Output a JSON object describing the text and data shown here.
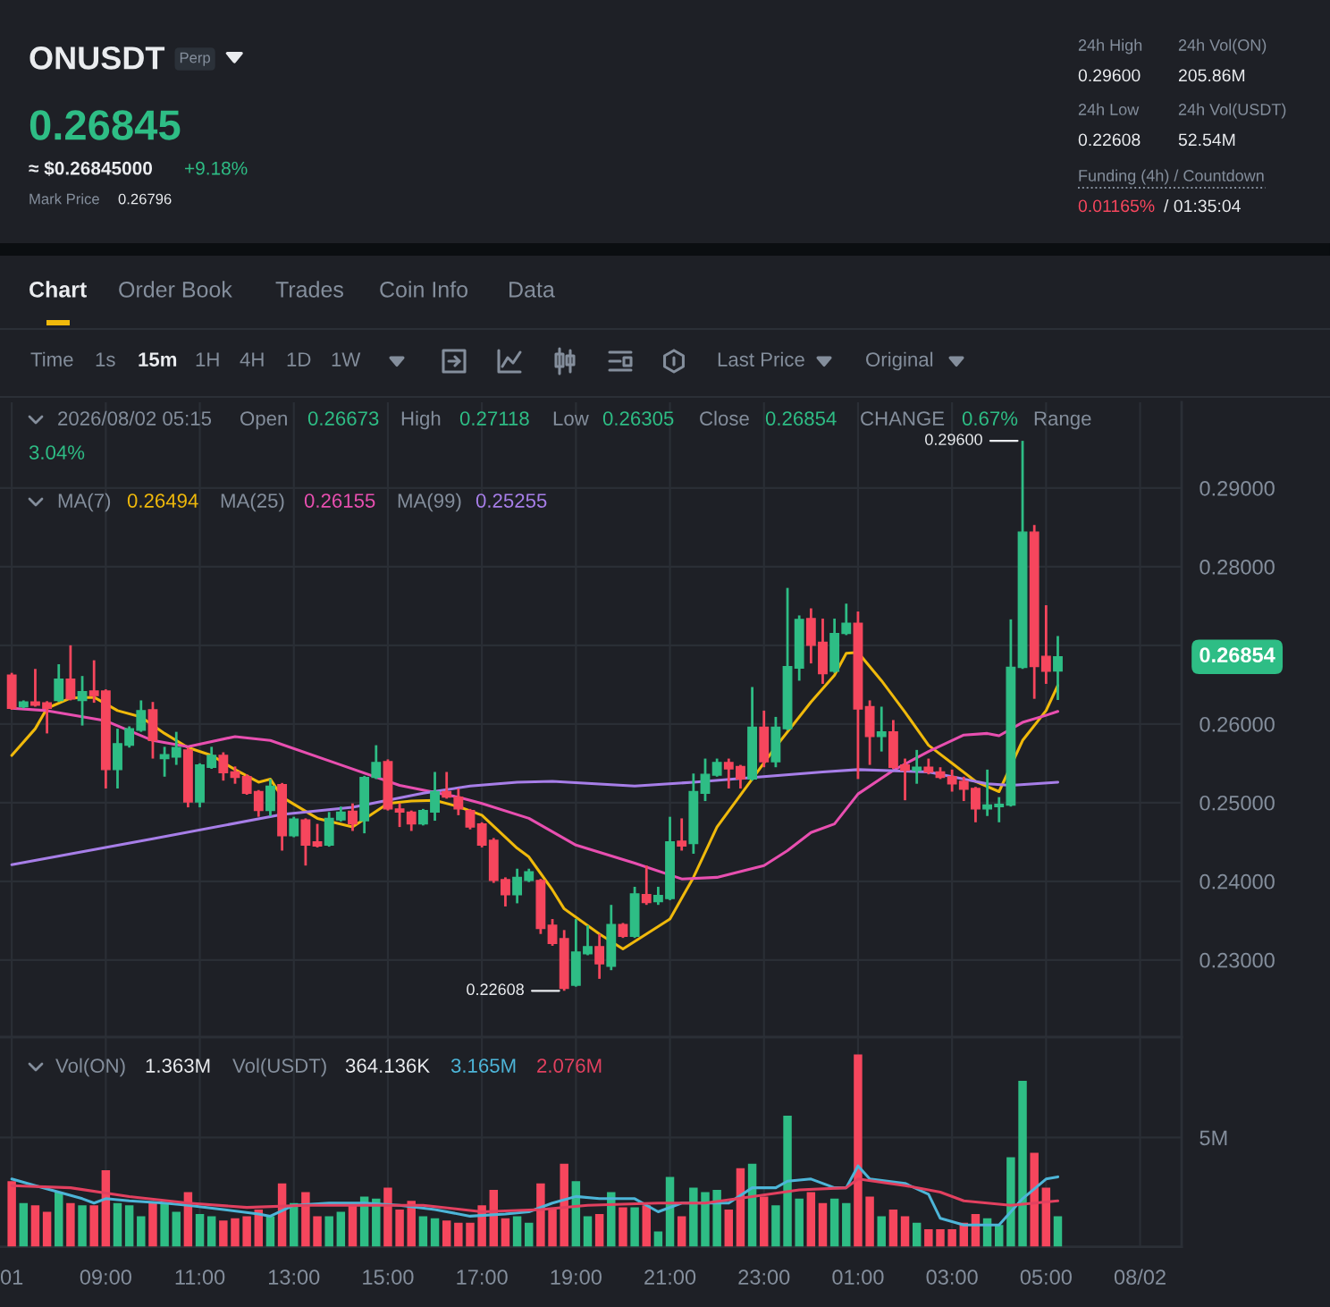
{
  "chart_data": [
    {
      "type": "other",
      "title": "ONUSDT",
      "annotations": [
        "Perp",
        "0.26845",
        "≈ $0.26845000",
        "+9.18%",
        "Mark Price",
        "0.26796",
        "24h High",
        "0.29600",
        "24h Vol(ON)",
        "205.86M",
        "24h Low",
        "0.22608",
        "24h Vol(USDT)",
        "52.54M",
        "Funding (4h) / Countdown",
        "0.01165%",
        "/ 01:35:04"
      ]
    },
    {
      "type": "other",
      "annotations": [
        "Chart",
        "Order Book",
        "Trades",
        "Coin Info",
        "Data",
        "Time",
        "1s",
        "15m",
        "1H",
        "4H",
        "1D",
        "1W",
        "Last Price",
        "Original"
      ]
    },
    {
      "type": "candlestick",
      "x": [
        "2026-08-01T07:00",
        "2026-08-01T07:15",
        "2026-08-01T07:30",
        "2026-08-01T07:45",
        "2026-08-01T08:00",
        "2026-08-01T08:15",
        "2026-08-01T08:30",
        "2026-08-01T08:45",
        "2026-08-01T09:00",
        "2026-08-01T09:15",
        "2026-08-01T09:30",
        "2026-08-01T09:45",
        "2026-08-01T10:00",
        "2026-08-01T10:15",
        "2026-08-01T10:30",
        "2026-08-01T10:45",
        "2026-08-01T11:00",
        "2026-08-01T11:15",
        "2026-08-01T11:30",
        "2026-08-01T11:45",
        "2026-08-01T12:00",
        "2026-08-01T12:15",
        "2026-08-01T12:30",
        "2026-08-01T12:45",
        "2026-08-01T13:00",
        "2026-08-01T13:15",
        "2026-08-01T13:30",
        "2026-08-01T13:45",
        "2026-08-01T14:00",
        "2026-08-01T14:15",
        "2026-08-01T14:30",
        "2026-08-01T14:45",
        "2026-08-01T15:00",
        "2026-08-01T15:15",
        "2026-08-01T15:30",
        "2026-08-01T15:45",
        "2026-08-01T16:00",
        "2026-08-01T16:15",
        "2026-08-01T16:30",
        "2026-08-01T16:45",
        "2026-08-01T17:00",
        "2026-08-01T17:15",
        "2026-08-01T17:30",
        "2026-08-01T17:45",
        "2026-08-01T18:00",
        "2026-08-01T18:15",
        "2026-08-01T18:30",
        "2026-08-01T18:45",
        "2026-08-01T19:00",
        "2026-08-01T19:15",
        "2026-08-01T19:30",
        "2026-08-01T19:45",
        "2026-08-01T20:00",
        "2026-08-01T20:15",
        "2026-08-01T20:30",
        "2026-08-01T20:45",
        "2026-08-01T21:00",
        "2026-08-01T21:15",
        "2026-08-01T21:30",
        "2026-08-01T21:45",
        "2026-08-01T22:00",
        "2026-08-01T22:15",
        "2026-08-01T22:30",
        "2026-08-01T22:45",
        "2026-08-01T23:00",
        "2026-08-01T23:15",
        "2026-08-01T23:30",
        "2026-08-01T23:45",
        "2026-08-02T00:00",
        "2026-08-02T00:15",
        "2026-08-02T00:30",
        "2026-08-02T00:45",
        "2026-08-02T01:00",
        "2026-08-02T01:15",
        "2026-08-02T01:30",
        "2026-08-02T01:45",
        "2026-08-02T02:00",
        "2026-08-02T02:15",
        "2026-08-02T02:30",
        "2026-08-02T02:45",
        "2026-08-02T03:00",
        "2026-08-02T03:15",
        "2026-08-02T03:30",
        "2026-08-02T03:45",
        "2026-08-02T04:00",
        "2026-08-02T04:15",
        "2026-08-02T04:30",
        "2026-08-02T04:45",
        "2026-08-02T05:00",
        "2026-08-02T05:15"
      ],
      "ohlc": [
        [
          0.2662,
          0.2665,
          0.2618,
          0.262
        ],
        [
          0.2622,
          0.263,
          0.262,
          0.2628
        ],
        [
          0.2628,
          0.267,
          0.2622,
          0.2624
        ],
        [
          0.2627,
          0.2629,
          0.2588,
          0.262
        ],
        [
          0.263,
          0.2676,
          0.2628,
          0.2657
        ],
        [
          0.2657,
          0.27,
          0.263,
          0.2632
        ],
        [
          0.263,
          0.2661,
          0.2598,
          0.2641
        ],
        [
          0.2642,
          0.2681,
          0.2627,
          0.2636
        ],
        [
          0.2642,
          0.2644,
          0.2518,
          0.2542
        ],
        [
          0.2542,
          0.2594,
          0.2518,
          0.2575
        ],
        [
          0.2573,
          0.2597,
          0.257,
          0.2594
        ],
        [
          0.2592,
          0.263,
          0.259,
          0.2617
        ],
        [
          0.2618,
          0.2628,
          0.2556,
          0.2579
        ],
        [
          0.2556,
          0.2571,
          0.2533,
          0.2561
        ],
        [
          0.2558,
          0.259,
          0.2548,
          0.257
        ],
        [
          0.2567,
          0.257,
          0.2494,
          0.2501
        ],
        [
          0.2501,
          0.255,
          0.2494,
          0.2548
        ],
        [
          0.2545,
          0.2571,
          0.2543,
          0.256
        ],
        [
          0.256,
          0.2564,
          0.2528,
          0.2538
        ],
        [
          0.2539,
          0.2546,
          0.2524,
          0.2532
        ],
        [
          0.2533,
          0.2536,
          0.251,
          0.2512
        ],
        [
          0.2514,
          0.2516,
          0.2482,
          0.249
        ],
        [
          0.249,
          0.253,
          0.2483,
          0.2521
        ],
        [
          0.2523,
          0.2525,
          0.2439,
          0.2458
        ],
        [
          0.2458,
          0.2482,
          0.2456,
          0.2479
        ],
        [
          0.2478,
          0.248,
          0.242,
          0.2446
        ],
        [
          0.245,
          0.2473,
          0.2443,
          0.2445
        ],
        [
          0.2446,
          0.2488,
          0.2444,
          0.248
        ],
        [
          0.2478,
          0.2495,
          0.2476,
          0.2488
        ],
        [
          0.2489,
          0.2499,
          0.2464,
          0.2473
        ],
        [
          0.2477,
          0.2534,
          0.2461,
          0.2532
        ],
        [
          0.2532,
          0.2573,
          0.253,
          0.2551
        ],
        [
          0.2552,
          0.2555,
          0.249,
          0.2492
        ],
        [
          0.2492,
          0.2499,
          0.2469,
          0.2488
        ],
        [
          0.2488,
          0.249,
          0.2464,
          0.2473
        ],
        [
          0.2473,
          0.2492,
          0.2471,
          0.249
        ],
        [
          0.2488,
          0.2539,
          0.2477,
          0.2514
        ],
        [
          0.2514,
          0.2539,
          0.2505,
          0.2507
        ],
        [
          0.2507,
          0.2518,
          0.2484,
          0.2492
        ],
        [
          0.249,
          0.2492,
          0.2466,
          0.2469
        ],
        [
          0.2473,
          0.2475,
          0.2443,
          0.2446
        ],
        [
          0.2452,
          0.2455,
          0.2398,
          0.2401
        ],
        [
          0.2402,
          0.2405,
          0.2368,
          0.2383
        ],
        [
          0.2383,
          0.2416,
          0.2372,
          0.2405
        ],
        [
          0.2401,
          0.2416,
          0.2399,
          0.2412
        ],
        [
          0.2401,
          0.2403,
          0.2333,
          0.234
        ],
        [
          0.2344,
          0.2352,
          0.2318,
          0.2321
        ],
        [
          0.2327,
          0.2338,
          0.22608,
          0.2264
        ],
        [
          0.2268,
          0.2352,
          0.2266,
          0.231
        ],
        [
          0.2308,
          0.2344,
          0.2306,
          0.2317
        ],
        [
          0.2317,
          0.2333,
          0.2276,
          0.2295
        ],
        [
          0.2292,
          0.237,
          0.2287,
          0.2345
        ],
        [
          0.2345,
          0.2347,
          0.2328,
          0.233
        ],
        [
          0.233,
          0.2393,
          0.2328,
          0.2384
        ],
        [
          0.2383,
          0.242,
          0.237,
          0.2373
        ],
        [
          0.2374,
          0.2393,
          0.237,
          0.2382
        ],
        [
          0.2378,
          0.2482,
          0.2376,
          0.245
        ],
        [
          0.2451,
          0.248,
          0.2439,
          0.2445
        ],
        [
          0.2448,
          0.2537,
          0.2435,
          0.2514
        ],
        [
          0.2512,
          0.2556,
          0.2502,
          0.2536
        ],
        [
          0.2535,
          0.2556,
          0.2533,
          0.2551
        ],
        [
          0.2551,
          0.2556,
          0.2518,
          0.2543
        ],
        [
          0.2546,
          0.2548,
          0.2518,
          0.253
        ],
        [
          0.253,
          0.2647,
          0.2528,
          0.2596
        ],
        [
          0.2596,
          0.2617,
          0.2545,
          0.2552
        ],
        [
          0.2552,
          0.2609,
          0.2545,
          0.2596
        ],
        [
          0.2594,
          0.2773,
          0.2592,
          0.2673
        ],
        [
          0.2671,
          0.2738,
          0.2655,
          0.2733
        ],
        [
          0.2734,
          0.2747,
          0.2677,
          0.27
        ],
        [
          0.2704,
          0.2734,
          0.2651,
          0.2664
        ],
        [
          0.2667,
          0.2734,
          0.2665,
          0.2715
        ],
        [
          0.2715,
          0.2753,
          0.2713,
          0.2728
        ],
        [
          0.2728,
          0.2743,
          0.253,
          0.2619
        ],
        [
          0.2622,
          0.263,
          0.2548,
          0.2584
        ],
        [
          0.2584,
          0.2622,
          0.2565,
          0.259
        ],
        [
          0.259,
          0.2605,
          0.2543,
          0.2545
        ],
        [
          0.2548,
          0.2556,
          0.2503,
          0.2541
        ],
        [
          0.2541,
          0.2567,
          0.2524,
          0.2545
        ],
        [
          0.2545,
          0.2556,
          0.2536,
          0.2539
        ],
        [
          0.2539,
          0.2545,
          0.253,
          0.2532
        ],
        [
          0.2533,
          0.2542,
          0.2514,
          0.2524
        ],
        [
          0.2527,
          0.2533,
          0.2502,
          0.2517
        ],
        [
          0.2518,
          0.252,
          0.2475,
          0.2492
        ],
        [
          0.2492,
          0.2542,
          0.2483,
          0.2497
        ],
        [
          0.2495,
          0.2507,
          0.2475,
          0.2498
        ],
        [
          0.2497,
          0.2733,
          0.2495,
          0.2672
        ],
        [
          0.2672,
          0.296,
          0.267,
          0.2844
        ],
        [
          0.2844,
          0.2853,
          0.2632,
          0.2673
        ],
        [
          0.2686,
          0.2751,
          0.2651,
          0.2667
        ],
        [
          0.26673,
          0.27118,
          0.26305,
          0.26854
        ]
      ],
      "colors": [
        "#f6465d",
        "#2ebd85",
        "#f6465d",
        "#f6465d",
        "#2ebd85",
        "#f6465d",
        "#2ebd85",
        "#f6465d",
        "#f6465d",
        "#2ebd85",
        "#2ebd85",
        "#2ebd85",
        "#f6465d",
        "#2ebd85",
        "#2ebd85",
        "#f6465d",
        "#2ebd85",
        "#2ebd85",
        "#f6465d",
        "#f6465d",
        "#f6465d",
        "#f6465d",
        "#2ebd85",
        "#f6465d",
        "#2ebd85",
        "#f6465d",
        "#f6465d",
        "#2ebd85",
        "#2ebd85",
        "#f6465d",
        "#2ebd85",
        "#2ebd85",
        "#f6465d",
        "#f6465d",
        "#f6465d",
        "#2ebd85",
        "#2ebd85",
        "#f6465d",
        "#f6465d",
        "#f6465d",
        "#f6465d",
        "#f6465d",
        "#f6465d",
        "#2ebd85",
        "#2ebd85",
        "#f6465d",
        "#f6465d",
        "#f6465d",
        "#2ebd85",
        "#2ebd85",
        "#f6465d",
        "#2ebd85",
        "#f6465d",
        "#2ebd85",
        "#f6465d",
        "#2ebd85",
        "#2ebd85",
        "#f6465d",
        "#2ebd85",
        "#2ebd85",
        "#2ebd85",
        "#f6465d",
        "#f6465d",
        "#2ebd85",
        "#f6465d",
        "#2ebd85",
        "#2ebd85",
        "#2ebd85",
        "#f6465d",
        "#f6465d",
        "#2ebd85",
        "#2ebd85",
        "#f6465d",
        "#f6465d",
        "#2ebd85",
        "#f6465d",
        "#f6465d",
        "#2ebd85",
        "#f6465d",
        "#f6465d",
        "#f6465d",
        "#f6465d",
        "#f6465d",
        "#2ebd85",
        "#2ebd85",
        "#2ebd85",
        "#2ebd85",
        "#f6465d",
        "#f6465d",
        "#2ebd85"
      ],
      "series": [
        {
          "type": "line",
          "color": "#f0b90b",
          "x": [
            "2026-08-01T07:00",
            "2026-08-01T07:30",
            "2026-08-01T07:45",
            "2026-08-01T08:15",
            "2026-08-01T08:45",
            "2026-08-01T09:15",
            "2026-08-01T09:45",
            "2026-08-01T10:15",
            "2026-08-01T10:45",
            "2026-08-01T11:15",
            "2026-08-01T11:45",
            "2026-08-01T12:15",
            "2026-08-01T12:30",
            "2026-08-01T12:45",
            "2026-08-01T13:30",
            "2026-08-01T14:15",
            "2026-08-01T15:00",
            "2026-08-01T15:30",
            "2026-08-01T16:00",
            "2026-08-01T16:30",
            "2026-08-01T17:00",
            "2026-08-01T17:45",
            "2026-08-01T18:00",
            "2026-08-01T18:15",
            "2026-08-01T18:30",
            "2026-08-01T18:45",
            "2026-08-01T19:30",
            "2026-08-01T20:00",
            "2026-08-01T20:30",
            "2026-08-01T21:00",
            "2026-08-01T21:30",
            "2026-08-01T22:00",
            "2026-08-01T22:45",
            "2026-08-01T23:15",
            "2026-08-02T00:00",
            "2026-08-02T00:30",
            "2026-08-02T00:45",
            "2026-08-02T01:00",
            "2026-08-02T01:30",
            "2026-08-02T02:00",
            "2026-08-02T02:30",
            "2026-08-02T03:00",
            "2026-08-02T03:30",
            "2026-08-02T04:00",
            "2026-08-02T04:30",
            "2026-08-02T05:00",
            "2026-08-02T05:15"
          ],
          "values": [
            0.256,
            0.2594,
            0.262,
            0.2633,
            0.2634,
            0.2617,
            0.2609,
            0.2588,
            0.257,
            0.256,
            0.2542,
            0.2526,
            0.253,
            0.2507,
            0.248,
            0.2469,
            0.2499,
            0.2502,
            0.2503,
            0.2495,
            0.2484,
            0.2442,
            0.2431,
            0.241,
            0.2389,
            0.2365,
            0.2333,
            0.2314,
            0.2333,
            0.2352,
            0.2405,
            0.2469,
            0.253,
            0.2571,
            0.2628,
            0.2662,
            0.269,
            0.2691,
            0.2655,
            0.2615,
            0.2573,
            0.255,
            0.2527,
            0.2514,
            0.2579,
            0.2617,
            0.2649
          ]
        },
        {
          "type": "line",
          "color": "#e84fb0",
          "x": [
            "2026-08-01T07:00",
            "2026-08-01T07:45",
            "2026-08-01T09:00",
            "2026-08-01T10:00",
            "2026-08-01T10:45",
            "2026-08-01T11:45",
            "2026-08-01T12:30",
            "2026-08-01T14:00",
            "2026-08-01T15:15",
            "2026-08-01T16:30",
            "2026-08-01T17:00",
            "2026-08-01T18:00",
            "2026-08-01T18:30",
            "2026-08-01T19:00",
            "2026-08-01T20:15",
            "2026-08-01T21:15",
            "2026-08-01T22:00",
            "2026-08-01T23:00",
            "2026-08-01T23:30",
            "2026-08-02T00:00",
            "2026-08-02T00:30",
            "2026-08-02T01:00",
            "2026-08-02T01:45",
            "2026-08-02T02:30",
            "2026-08-02T03:15",
            "2026-08-02T03:45",
            "2026-08-02T04:00",
            "2026-08-02T04:30",
            "2026-08-02T05:00",
            "2026-08-02T05:15"
          ],
          "values": [
            0.262,
            0.2617,
            0.2604,
            0.2579,
            0.2571,
            0.2584,
            0.2579,
            0.2548,
            0.2522,
            0.2507,
            0.2499,
            0.248,
            0.2463,
            0.2446,
            0.2423,
            0.2403,
            0.2405,
            0.242,
            0.2439,
            0.2462,
            0.2473,
            0.2511,
            0.2541,
            0.2565,
            0.2586,
            0.2588,
            0.2585,
            0.2602,
            0.2611,
            0.2616
          ]
        },
        {
          "type": "line",
          "color": "#a77ee8",
          "x": [
            "2026-08-01T07:00",
            "2026-08-01T10:00",
            "2026-08-01T12:45",
            "2026-08-01T14:15",
            "2026-08-01T15:45",
            "2026-08-01T16:45",
            "2026-08-01T17:45",
            "2026-08-01T18:30",
            "2026-08-01T20:15",
            "2026-08-01T21:30",
            "2026-08-01T22:45",
            "2026-08-02T00:15",
            "2026-08-02T01:00",
            "2026-08-02T02:30",
            "2026-08-02T03:45",
            "2026-08-02T04:15",
            "2026-08-02T05:15"
          ],
          "values": [
            0.2421,
            0.2454,
            0.2485,
            0.2494,
            0.2512,
            0.2521,
            0.2526,
            0.2527,
            0.2521,
            0.2526,
            0.2532,
            0.2539,
            0.2542,
            0.2539,
            0.2524,
            0.2522,
            0.2526
          ]
        }
      ],
      "xlim": [
        "2026-08-01T06:45",
        "2026-08-02T07:53"
      ],
      "ylim": [
        0.2202,
        0.3009
      ],
      "xticks": [
        {
          "value": "2026-08-01T07:00",
          "label": null
        },
        {
          "value": "2026-08-01T09:00",
          "label": null
        },
        {
          "value": "2026-08-01T11:00",
          "label": null
        },
        {
          "value": "2026-08-01T13:00",
          "label": null
        },
        {
          "value": "2026-08-01T15:00",
          "label": null
        },
        {
          "value": "2026-08-01T17:00",
          "label": null
        },
        {
          "value": "2026-08-01T19:00",
          "label": null
        },
        {
          "value": "2026-08-01T21:00",
          "label": null
        },
        {
          "value": "2026-08-01T23:00",
          "label": null
        },
        {
          "value": "2026-08-02T01:00",
          "label": null
        },
        {
          "value": "2026-08-02T03:00",
          "label": null
        },
        {
          "value": "2026-08-02T05:00",
          "label": null
        },
        {
          "value": "2026-08-02T07:00",
          "label": null
        }
      ],
      "yticks": [
        {
          "value": 0.23,
          "label": "0.23000"
        },
        {
          "value": 0.24,
          "label": "0.24000"
        },
        {
          "value": 0.25,
          "label": "0.25000"
        },
        {
          "value": 0.26,
          "label": "0.26000"
        },
        {
          "value": 0.27,
          "label": null
        },
        {
          "value": 0.28,
          "label": "0.28000"
        },
        {
          "value": 0.29,
          "label": "0.29000"
        }
      ],
      "grid": true,
      "tick_labels": "y",
      "annotations": [
        "2026/08/02 05:15",
        "Open",
        "0.26673",
        "High",
        "0.27118",
        "Low",
        "0.26305",
        "Close",
        "0.26854",
        "CHANGE",
        "0.67%",
        "Range",
        "3.04%",
        "MA(7)",
        "0.26494",
        "MA(25)",
        "0.26155",
        "MA(99)",
        "0.25255",
        {
          "text": "0.29600",
          "x": "2026-08-02T04:30",
          "y": 0.296
        },
        {
          "text": "0.22608",
          "x": "2026-08-01T18:45",
          "y": 0.22608
        },
        "0.26854"
      ]
    },
    {
      "type": "bar",
      "x": [
        "2026-08-01T07:00",
        "2026-08-01T07:15",
        "2026-08-01T07:30",
        "2026-08-01T07:45",
        "2026-08-01T08:00",
        "2026-08-01T08:15",
        "2026-08-01T08:30",
        "2026-08-01T08:45",
        "2026-08-01T09:00",
        "2026-08-01T09:15",
        "2026-08-01T09:30",
        "2026-08-01T09:45",
        "2026-08-01T10:00",
        "2026-08-01T10:15",
        "2026-08-01T10:30",
        "2026-08-01T10:45",
        "2026-08-01T11:00",
        "2026-08-01T11:15",
        "2026-08-01T11:30",
        "2026-08-01T11:45",
        "2026-08-01T12:00",
        "2026-08-01T12:15",
        "2026-08-01T12:30",
        "2026-08-01T12:45",
        "2026-08-01T13:00",
        "2026-08-01T13:15",
        "2026-08-01T13:30",
        "2026-08-01T13:45",
        "2026-08-01T14:00",
        "2026-08-01T14:15",
        "2026-08-01T14:30",
        "2026-08-01T14:45",
        "2026-08-01T15:00",
        "2026-08-01T15:15",
        "2026-08-01T15:30",
        "2026-08-01T15:45",
        "2026-08-01T16:00",
        "2026-08-01T16:15",
        "2026-08-01T16:30",
        "2026-08-01T16:45",
        "2026-08-01T17:00",
        "2026-08-01T17:15",
        "2026-08-01T17:30",
        "2026-08-01T17:45",
        "2026-08-01T18:00",
        "2026-08-01T18:15",
        "2026-08-01T18:30",
        "2026-08-01T18:45",
        "2026-08-01T19:00",
        "2026-08-01T19:15",
        "2026-08-01T19:30",
        "2026-08-01T19:45",
        "2026-08-01T20:00",
        "2026-08-01T20:15",
        "2026-08-01T20:30",
        "2026-08-01T20:45",
        "2026-08-01T21:00",
        "2026-08-01T21:15",
        "2026-08-01T21:30",
        "2026-08-01T21:45",
        "2026-08-01T22:00",
        "2026-08-01T22:15",
        "2026-08-01T22:30",
        "2026-08-01T22:45",
        "2026-08-01T23:00",
        "2026-08-01T23:15",
        "2026-08-01T23:30",
        "2026-08-01T23:45",
        "2026-08-02T00:00",
        "2026-08-02T00:15",
        "2026-08-02T00:30",
        "2026-08-02T00:45",
        "2026-08-02T01:00",
        "2026-08-02T01:15",
        "2026-08-02T01:30",
        "2026-08-02T01:45",
        "2026-08-02T02:00",
        "2026-08-02T02:15",
        "2026-08-02T02:30",
        "2026-08-02T02:45",
        "2026-08-02T03:00",
        "2026-08-02T03:15",
        "2026-08-02T03:30",
        "2026-08-02T03:45",
        "2026-08-02T04:00",
        "2026-08-02T04:15",
        "2026-08-02T04:30",
        "2026-08-02T04:45",
        "2026-08-02T05:00",
        "2026-08-02T05:15"
      ],
      "series": [
        {
          "type": "bar",
          "colors": [
            "#f6465d",
            "#2ebd85",
            "#f6465d",
            "#f6465d",
            "#2ebd85",
            "#f6465d",
            "#2ebd85",
            "#f6465d",
            "#f6465d",
            "#2ebd85",
            "#2ebd85",
            "#2ebd85",
            "#f6465d",
            "#2ebd85",
            "#2ebd85",
            "#f6465d",
            "#2ebd85",
            "#2ebd85",
            "#f6465d",
            "#f6465d",
            "#f6465d",
            "#f6465d",
            "#2ebd85",
            "#f6465d",
            "#2ebd85",
            "#f6465d",
            "#f6465d",
            "#2ebd85",
            "#2ebd85",
            "#f6465d",
            "#2ebd85",
            "#2ebd85",
            "#f6465d",
            "#f6465d",
            "#f6465d",
            "#2ebd85",
            "#2ebd85",
            "#f6465d",
            "#f6465d",
            "#f6465d",
            "#f6465d",
            "#f6465d",
            "#f6465d",
            "#2ebd85",
            "#2ebd85",
            "#f6465d",
            "#f6465d",
            "#f6465d",
            "#2ebd85",
            "#2ebd85",
            "#f6465d",
            "#2ebd85",
            "#f6465d",
            "#2ebd85",
            "#f6465d",
            "#2ebd85",
            "#2ebd85",
            "#f6465d",
            "#2ebd85",
            "#2ebd85",
            "#2ebd85",
            "#f6465d",
            "#f6465d",
            "#2ebd85",
            "#f6465d",
            "#2ebd85",
            "#2ebd85",
            "#2ebd85",
            "#f6465d",
            "#f6465d",
            "#2ebd85",
            "#2ebd85",
            "#f6465d",
            "#f6465d",
            "#2ebd85",
            "#f6465d",
            "#f6465d",
            "#2ebd85",
            "#f6465d",
            "#f6465d",
            "#f6465d",
            "#f6465d",
            "#f6465d",
            "#2ebd85",
            "#2ebd85",
            "#2ebd85",
            "#2ebd85",
            "#f6465d",
            "#f6465d",
            "#2ebd85"
          ],
          "values": [
            3.0,
            2.0,
            1.9,
            1.6,
            2.5,
            2.0,
            1.9,
            1.9,
            3.5,
            2.0,
            1.9,
            1.4,
            2.0,
            2.0,
            1.6,
            2.5,
            1.5,
            1.4,
            1.2,
            1.3,
            1.4,
            1.7,
            1.4,
            2.9,
            2.0,
            2.5,
            1.4,
            1.4,
            1.6,
            1.9,
            2.3,
            2.2,
            2.7,
            1.7,
            2.1,
            1.4,
            1.3,
            1.2,
            1.1,
            1.1,
            1.9,
            2.6,
            1.3,
            1.4,
            1.1,
            2.9,
            1.7,
            3.8,
            3.0,
            1.4,
            1.5,
            2.5,
            1.8,
            1.8,
            1.9,
            0.7,
            3.2,
            1.4,
            2.7,
            2.5,
            2.6,
            1.7,
            3.6,
            3.8,
            2.3,
            1.9,
            6.0,
            2.2,
            2.5,
            2.0,
            2.2,
            2.0,
            8.8,
            2.3,
            1.4,
            1.7,
            1.4,
            1.1,
            0.8,
            0.8,
            0.8,
            1.1,
            1.5,
            1.3,
            1.0,
            4.1,
            7.6,
            4.3,
            2.7,
            1.4
          ]
        },
        {
          "type": "line",
          "color": "#4db5d8",
          "x": [
            "2026-08-01T07:00",
            "2026-08-01T07:30",
            "2026-08-01T08:00",
            "2026-08-01T08:30",
            "2026-08-01T08:45",
            "2026-08-01T09:00",
            "2026-08-01T09:30",
            "2026-08-01T10:15",
            "2026-08-01T10:45",
            "2026-08-01T11:30",
            "2026-08-01T12:15",
            "2026-08-01T12:30",
            "2026-08-01T13:00",
            "2026-08-01T13:45",
            "2026-08-01T14:30",
            "2026-08-01T15:15",
            "2026-08-01T16:00",
            "2026-08-01T16:45",
            "2026-08-01T17:30",
            "2026-08-01T18:00",
            "2026-08-01T18:30",
            "2026-08-01T19:00",
            "2026-08-01T19:30",
            "2026-08-01T20:15",
            "2026-08-01T20:45",
            "2026-08-01T21:15",
            "2026-08-01T22:15",
            "2026-08-01T22:45",
            "2026-08-01T23:15",
            "2026-08-01T23:30",
            "2026-08-02T00:00",
            "2026-08-02T00:30",
            "2026-08-02T00:45",
            "2026-08-02T01:00",
            "2026-08-02T01:15",
            "2026-08-02T02:00",
            "2026-08-02T02:30",
            "2026-08-02T02:45",
            "2026-08-02T03:15",
            "2026-08-02T04:00",
            "2026-08-02T04:30",
            "2026-08-02T05:00",
            "2026-08-02T05:15"
          ],
          "values": [
            3.1,
            2.8,
            2.5,
            2.2,
            2.0,
            2.2,
            2.1,
            2.0,
            1.9,
            1.7,
            1.5,
            1.4,
            1.9,
            2.0,
            2.0,
            1.9,
            1.7,
            1.4,
            1.5,
            1.6,
            2.0,
            2.3,
            2.2,
            2.2,
            1.6,
            2.0,
            2.0,
            2.7,
            2.7,
            3.0,
            3.1,
            2.7,
            2.7,
            3.7,
            3.1,
            2.9,
            2.4,
            1.3,
            1.0,
            1.0,
            2.2,
            3.1,
            3.2
          ]
        },
        {
          "type": "line",
          "color": "#e2405f",
          "x": [
            "2026-08-01T07:00",
            "2026-08-01T08:15",
            "2026-08-01T09:30",
            "2026-08-01T10:45",
            "2026-08-01T12:00",
            "2026-08-01T13:15",
            "2026-08-01T14:30",
            "2026-08-01T15:45",
            "2026-08-01T17:00",
            "2026-08-01T18:15",
            "2026-08-01T19:15",
            "2026-08-01T20:45",
            "2026-08-01T21:45",
            "2026-08-01T22:45",
            "2026-08-01T23:45",
            "2026-08-02T00:45",
            "2026-08-02T01:00",
            "2026-08-02T02:00",
            "2026-08-02T02:45",
            "2026-08-02T03:15",
            "2026-08-02T04:15",
            "2026-08-02T04:45",
            "2026-08-02T05:15"
          ],
          "values": [
            2.8,
            2.7,
            2.3,
            2.0,
            1.8,
            1.9,
            1.9,
            1.9,
            1.6,
            1.7,
            1.9,
            2.0,
            2.0,
            2.3,
            2.6,
            2.7,
            3.1,
            2.8,
            2.5,
            2.1,
            1.9,
            2.0,
            2.1
          ]
        }
      ],
      "xlim": [
        "2026-08-01T06:45",
        "2026-08-02T07:53"
      ],
      "ylim": [
        0,
        9.6
      ],
      "xticks": [
        {
          "value": "2026-08-01T07:00",
          "label": "01"
        },
        {
          "value": "2026-08-01T09:00",
          "label": "09:00"
        },
        {
          "value": "2026-08-01T11:00",
          "label": "11:00"
        },
        {
          "value": "2026-08-01T13:00",
          "label": "13:00"
        },
        {
          "value": "2026-08-01T15:00",
          "label": "15:00"
        },
        {
          "value": "2026-08-01T17:00",
          "label": "17:00"
        },
        {
          "value": "2026-08-01T19:00",
          "label": "19:00"
        },
        {
          "value": "2026-08-01T21:00",
          "label": "21:00"
        },
        {
          "value": "2026-08-01T23:00",
          "label": "23:00"
        },
        {
          "value": "2026-08-02T01:00",
          "label": "01:00"
        },
        {
          "value": "2026-08-02T03:00",
          "label": "03:00"
        },
        {
          "value": "2026-08-02T05:00",
          "label": "05:00"
        },
        {
          "value": "2026-08-02T07:00",
          "label": "08/02"
        }
      ],
      "yticks": [
        {
          "value": 5,
          "label": "5M"
        }
      ],
      "grid": true,
      "annotations": [
        "Vol(ON)",
        "1.363M",
        "Vol(USDT)",
        "364.136K",
        "3.165M",
        "2.076M"
      ]
    }
  ]
}
